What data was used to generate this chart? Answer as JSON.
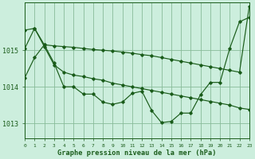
{
  "title": "Graphe pression niveau de la mer (hPa)",
  "bg_color": "#cceedd",
  "grid_color": "#88bb99",
  "line_color": "#1a5c1a",
  "xlim": [
    0,
    23
  ],
  "ylim": [
    1012.6,
    1016.3
  ],
  "yticks": [
    1013,
    1014,
    1015
  ],
  "xticks": [
    0,
    1,
    2,
    3,
    4,
    5,
    6,
    7,
    8,
    9,
    10,
    11,
    12,
    13,
    14,
    15,
    16,
    17,
    18,
    19,
    20,
    21,
    22,
    23
  ],
  "series": [
    [
      1014.25,
      1014.8,
      1015.15,
      1014.65,
      1014.0,
      1014.0,
      1013.8,
      1013.8,
      1013.58,
      1013.52,
      1013.58,
      1013.82,
      1013.88,
      1013.35,
      1013.02,
      1013.05,
      1013.28,
      1013.28,
      1013.78,
      1014.12,
      1014.12,
      1015.05,
      1015.78,
      1015.9
    ],
    [
      1015.55,
      1015.6,
      1015.15,
      1015.12,
      1015.1,
      1015.08,
      1015.05,
      1015.02,
      1015.0,
      1014.98,
      1014.95,
      1014.92,
      1014.88,
      1014.85,
      1014.8,
      1014.75,
      1014.7,
      1014.65,
      1014.6,
      1014.55,
      1014.5,
      1014.45,
      1014.4,
      1016.2
    ],
    [
      1015.05,
      1015.6,
      1015.1,
      1014.6,
      1014.4,
      1014.32,
      1014.28,
      1014.22,
      1014.18,
      1014.1,
      1014.05,
      1014.0,
      1013.95,
      1013.9,
      1013.85,
      1013.8,
      1013.75,
      1013.7,
      1013.65,
      1013.6,
      1013.55,
      1013.5,
      1013.42,
      1013.38
    ]
  ]
}
